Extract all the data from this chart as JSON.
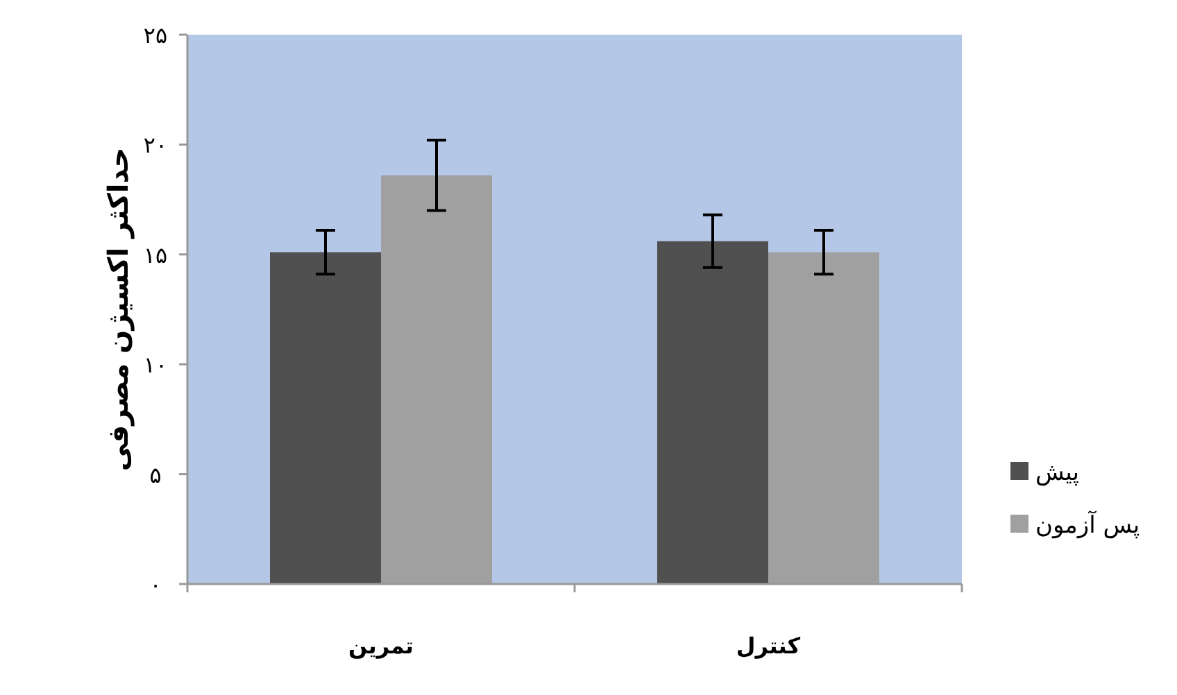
{
  "chart_data": {
    "type": "bar",
    "ylabel": "حداکثر اکسیژن مصرفی",
    "categories": [
      "تمرین",
      "کنترل"
    ],
    "series": [
      {
        "name": "پیش",
        "color": "#505050",
        "values": [
          15.1,
          15.6
        ],
        "errors": [
          1.0,
          1.2
        ]
      },
      {
        "name": "پس آزمون",
        "color": "#a0a0a0",
        "values": [
          18.6,
          15.1
        ],
        "errors": [
          1.6,
          1.0
        ]
      }
    ],
    "ylim": [
      0,
      25
    ],
    "yticks": [
      {
        "value": 0,
        "label": "۰"
      },
      {
        "value": 5,
        "label": "۵"
      },
      {
        "value": 10,
        "label": "۱۰"
      },
      {
        "value": 15,
        "label": "۱۵"
      },
      {
        "value": 20,
        "label": "۲۰"
      },
      {
        "value": 25,
        "label": "۲۵"
      }
    ],
    "legend": "right"
  }
}
